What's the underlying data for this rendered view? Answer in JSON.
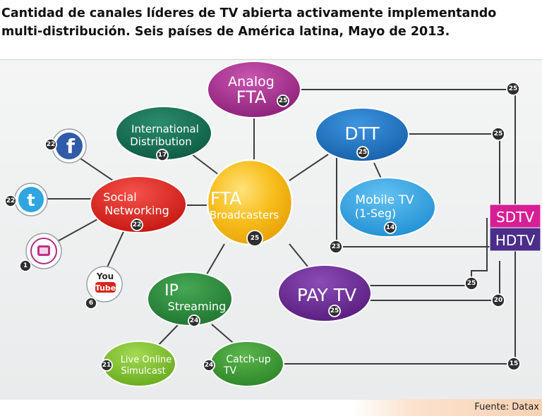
{
  "header": {
    "title_line1": "Cantidad de canales líderes de TV abierta activamente implementando",
    "title_line2": "multi-distribución. Seis países de América latina, Mayo de 2013."
  },
  "diagram": {
    "center": {
      "line1": "FTA",
      "line2": "Broadcasters",
      "count": "25"
    },
    "nodes": {
      "analog_fta": {
        "line1": "Analog",
        "line2": "FTA",
        "count": "25"
      },
      "international": {
        "line1": "International",
        "line2": "Distribution",
        "count": "17"
      },
      "dtt": {
        "line1": "DTT",
        "count": "25"
      },
      "mobile_tv": {
        "line1": "Mobile TV",
        "line2": "(1-Seg)",
        "count": "14"
      },
      "social": {
        "line1": "Social",
        "line2": "Networking",
        "count": "22"
      },
      "pay_tv": {
        "line1": "PAY TV",
        "count": "25"
      },
      "ip_streaming": {
        "line1": "IP",
        "line2": "Streaming",
        "count": "24"
      },
      "live_online": {
        "line1": "Live Online",
        "line2": "Simulcast",
        "count": "21"
      },
      "catchup": {
        "line1": "Catch-up",
        "line2": "TV",
        "count": "24"
      }
    },
    "social_icons": {
      "facebook": {
        "glyph": "f",
        "count": "22"
      },
      "twitter": {
        "glyph": "t",
        "count": "22"
      },
      "app": {
        "count": "1"
      },
      "youtube": {
        "line1": "You",
        "line2": "Tube",
        "count": "6"
      }
    },
    "legend": {
      "sdtv": "SDTV",
      "hdtv": "HDTV"
    },
    "connector_counts": {
      "analog": "25",
      "dtt": "25",
      "dtt_hd": "23",
      "paytv_sd": "25",
      "paytv_hd": "20",
      "catchup": "15"
    },
    "colors": {
      "analog": "#9c2a86",
      "international": "#126b50",
      "dtt": "#1e73c0",
      "mobile": "#2a9fe0",
      "social": "#e0241b",
      "center": "#f5b512",
      "paytv": "#6a2a92",
      "ip": "#2a8a3a",
      "live": "#7cc12c",
      "catchup": "#3e9a35",
      "sdtv": "#d71f95",
      "hdtv": "#4a2e8a"
    }
  },
  "footer": {
    "source": "Fuente: Datax"
  }
}
